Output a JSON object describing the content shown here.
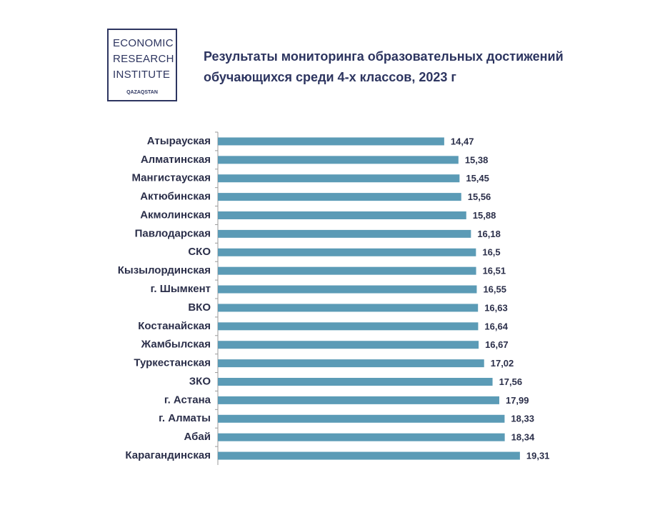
{
  "logo": {
    "lines": [
      "ECONOMIC",
      "RESEARCH",
      "INSTITUTE"
    ],
    "sub": "QAZAQSTAN"
  },
  "chart_data": {
    "type": "bar",
    "orientation": "horizontal",
    "title": [
      "Результаты мониторинга образовательных достижений",
      "обучающихся среди 4-х классов, 2023 г"
    ],
    "categories": [
      "Атырауская",
      "Алматинская",
      "Мангистауская",
      "Актюбинская",
      "Акмолинская",
      "Павлодарская",
      "СКО",
      "Кызылординская",
      "г. Шымкент",
      "ВКО",
      "Костанайская",
      "Жамбылская",
      "Туркестанская",
      "ЗКО",
      "г. Астана",
      "г. Алматы",
      "Абай",
      "Карагандинская"
    ],
    "values": [
      14.47,
      15.38,
      15.45,
      15.56,
      15.88,
      16.18,
      16.5,
      16.51,
      16.55,
      16.63,
      16.64,
      16.67,
      17.02,
      17.56,
      17.99,
      18.33,
      18.34,
      19.31
    ],
    "value_labels": [
      "14,47",
      "15,38",
      "15,45",
      "15,56",
      "15,88",
      "16,18",
      "16,5",
      "16,51",
      "16,55",
      "16,63",
      "16,64",
      "16,67",
      "17,02",
      "17,56",
      "17,99",
      "18,33",
      "18,34",
      "19,31"
    ],
    "color": "#5b9bb6",
    "xlim": [
      0,
      20
    ]
  }
}
